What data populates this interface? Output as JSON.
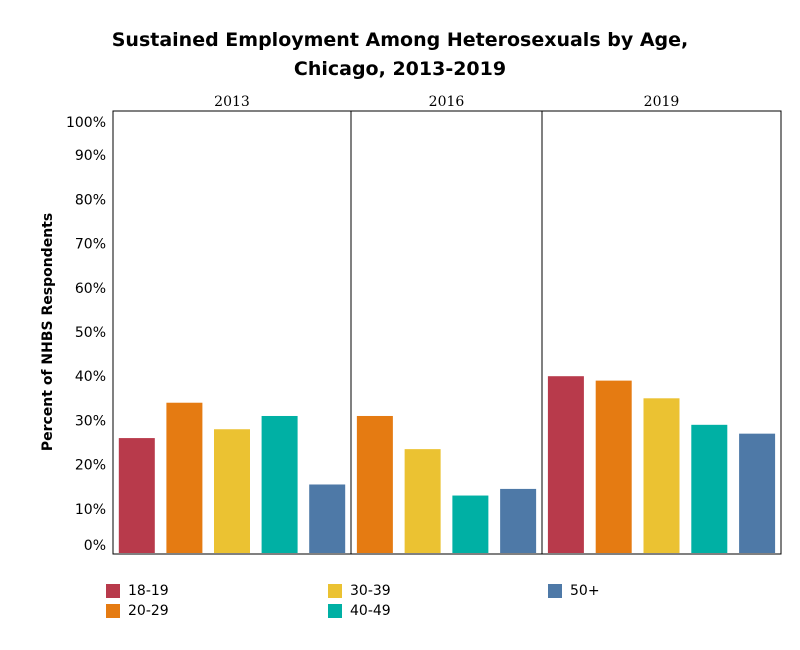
{
  "chart_data": {
    "type": "bar",
    "title_line1": "Sustained Employment Among Heterosexuals by Age,",
    "title_line2": "Chicago, 2013-2019",
    "ylabel": "Percent of NHBS Respondents",
    "ylim": [
      0,
      100
    ],
    "y_ticks": [
      "0%",
      "10%",
      "20%",
      "30%",
      "40%",
      "50%",
      "60%",
      "70%",
      "80%",
      "90%",
      "100%"
    ],
    "y_tick_values": [
      0,
      10,
      20,
      30,
      40,
      50,
      60,
      70,
      80,
      90,
      100
    ],
    "panels": [
      "2013",
      "2016",
      "2019"
    ],
    "series": [
      {
        "name": "18-19",
        "color": "#b83a4b",
        "values": [
          26,
          null,
          40
        ]
      },
      {
        "name": "20-29",
        "color": "#e57b12",
        "values": [
          34,
          31,
          39
        ]
      },
      {
        "name": "30-39",
        "color": "#ebc232",
        "values": [
          28,
          23.5,
          35
        ]
      },
      {
        "name": "40-49",
        "color": "#00b0a4",
        "values": [
          31,
          13,
          29
        ]
      },
      {
        "name": "50+",
        "color": "#4e79a7",
        "values": [
          15.5,
          14.5,
          27
        ]
      }
    ],
    "legend_position": "bottom",
    "grid": false
  }
}
